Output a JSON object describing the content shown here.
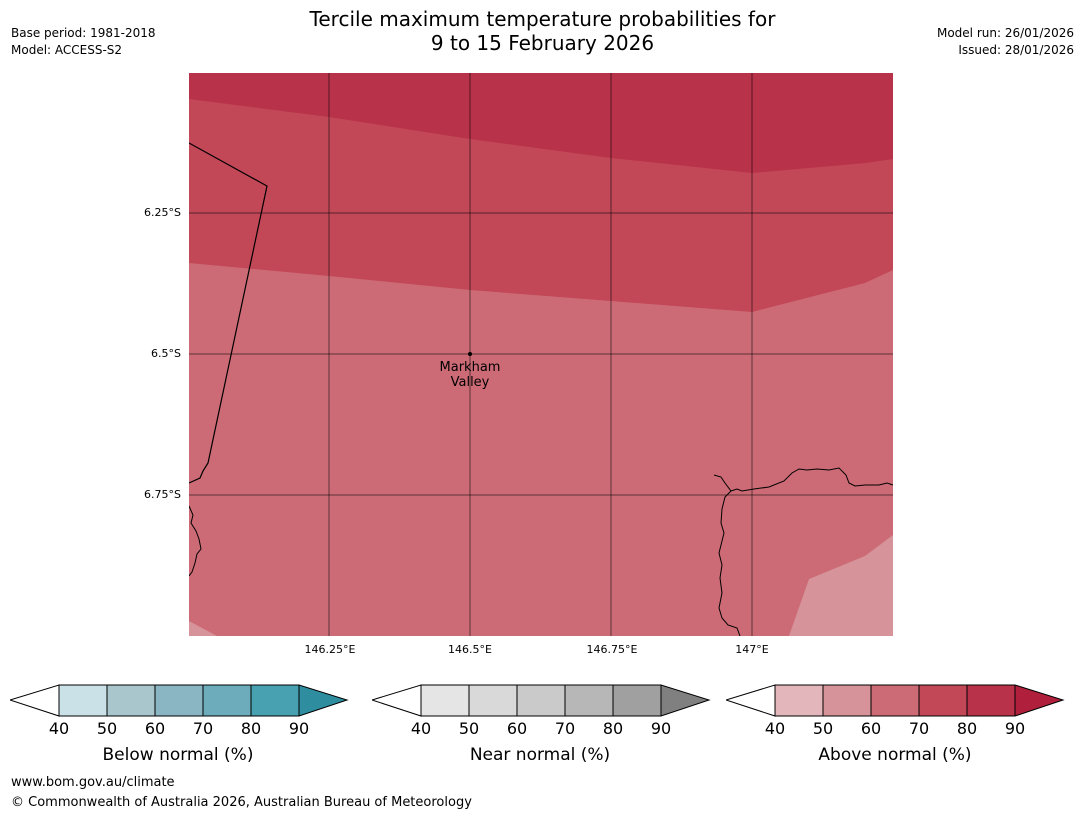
{
  "header": {
    "title_line1": "Tercile maximum temperature probabilities for",
    "title_line2": "9 to 15 February 2026",
    "base_period": "Base period: 1981-2018",
    "model": "Model: ACCESS-S2",
    "model_run": "Model run: 26/01/2026",
    "issued": "Issued: 28/01/2026"
  },
  "map": {
    "latitude_labels": [
      "6.25°S",
      "6.5°S",
      "6.75°S"
    ],
    "longitude_labels": [
      "146.25°E",
      "146.5°E",
      "146.75°E",
      "147°E"
    ],
    "place": {
      "name_line1": "Markham",
      "name_line2": "Valley"
    },
    "colors": {
      "above_60": "#CC6B75",
      "above_70": "#C24757",
      "above_80": "#B83249",
      "above_50": "#D69399"
    }
  },
  "colorbars": [
    {
      "label": "Below normal (%)",
      "ticks": [
        "40",
        "50",
        "60",
        "70",
        "80",
        "90"
      ],
      "colors": [
        "#CAE2E7",
        "#A8C6CC",
        "#8AB5C2",
        "#6DADBB",
        "#47A1B0",
        "#2E8E9F"
      ]
    },
    {
      "label": "Near normal (%)",
      "ticks": [
        "40",
        "50",
        "60",
        "70",
        "80",
        "90"
      ],
      "colors": [
        "#E5E5E5",
        "#D9D9D9",
        "#CACACA",
        "#B7B7B7",
        "#A0A0A0",
        "#808080"
      ]
    },
    {
      "label": "Above normal (%)",
      "ticks": [
        "40",
        "50",
        "60",
        "70",
        "80",
        "90"
      ],
      "colors": [
        "#E2B6BA",
        "#D69399",
        "#CC6B75",
        "#C24757",
        "#B83249",
        "#B0203C"
      ]
    }
  ],
  "footer": {
    "url": "www.bom.gov.au/climate",
    "copyright": "© Commonwealth of Australia 2026, Australian Bureau of Meteorology"
  }
}
